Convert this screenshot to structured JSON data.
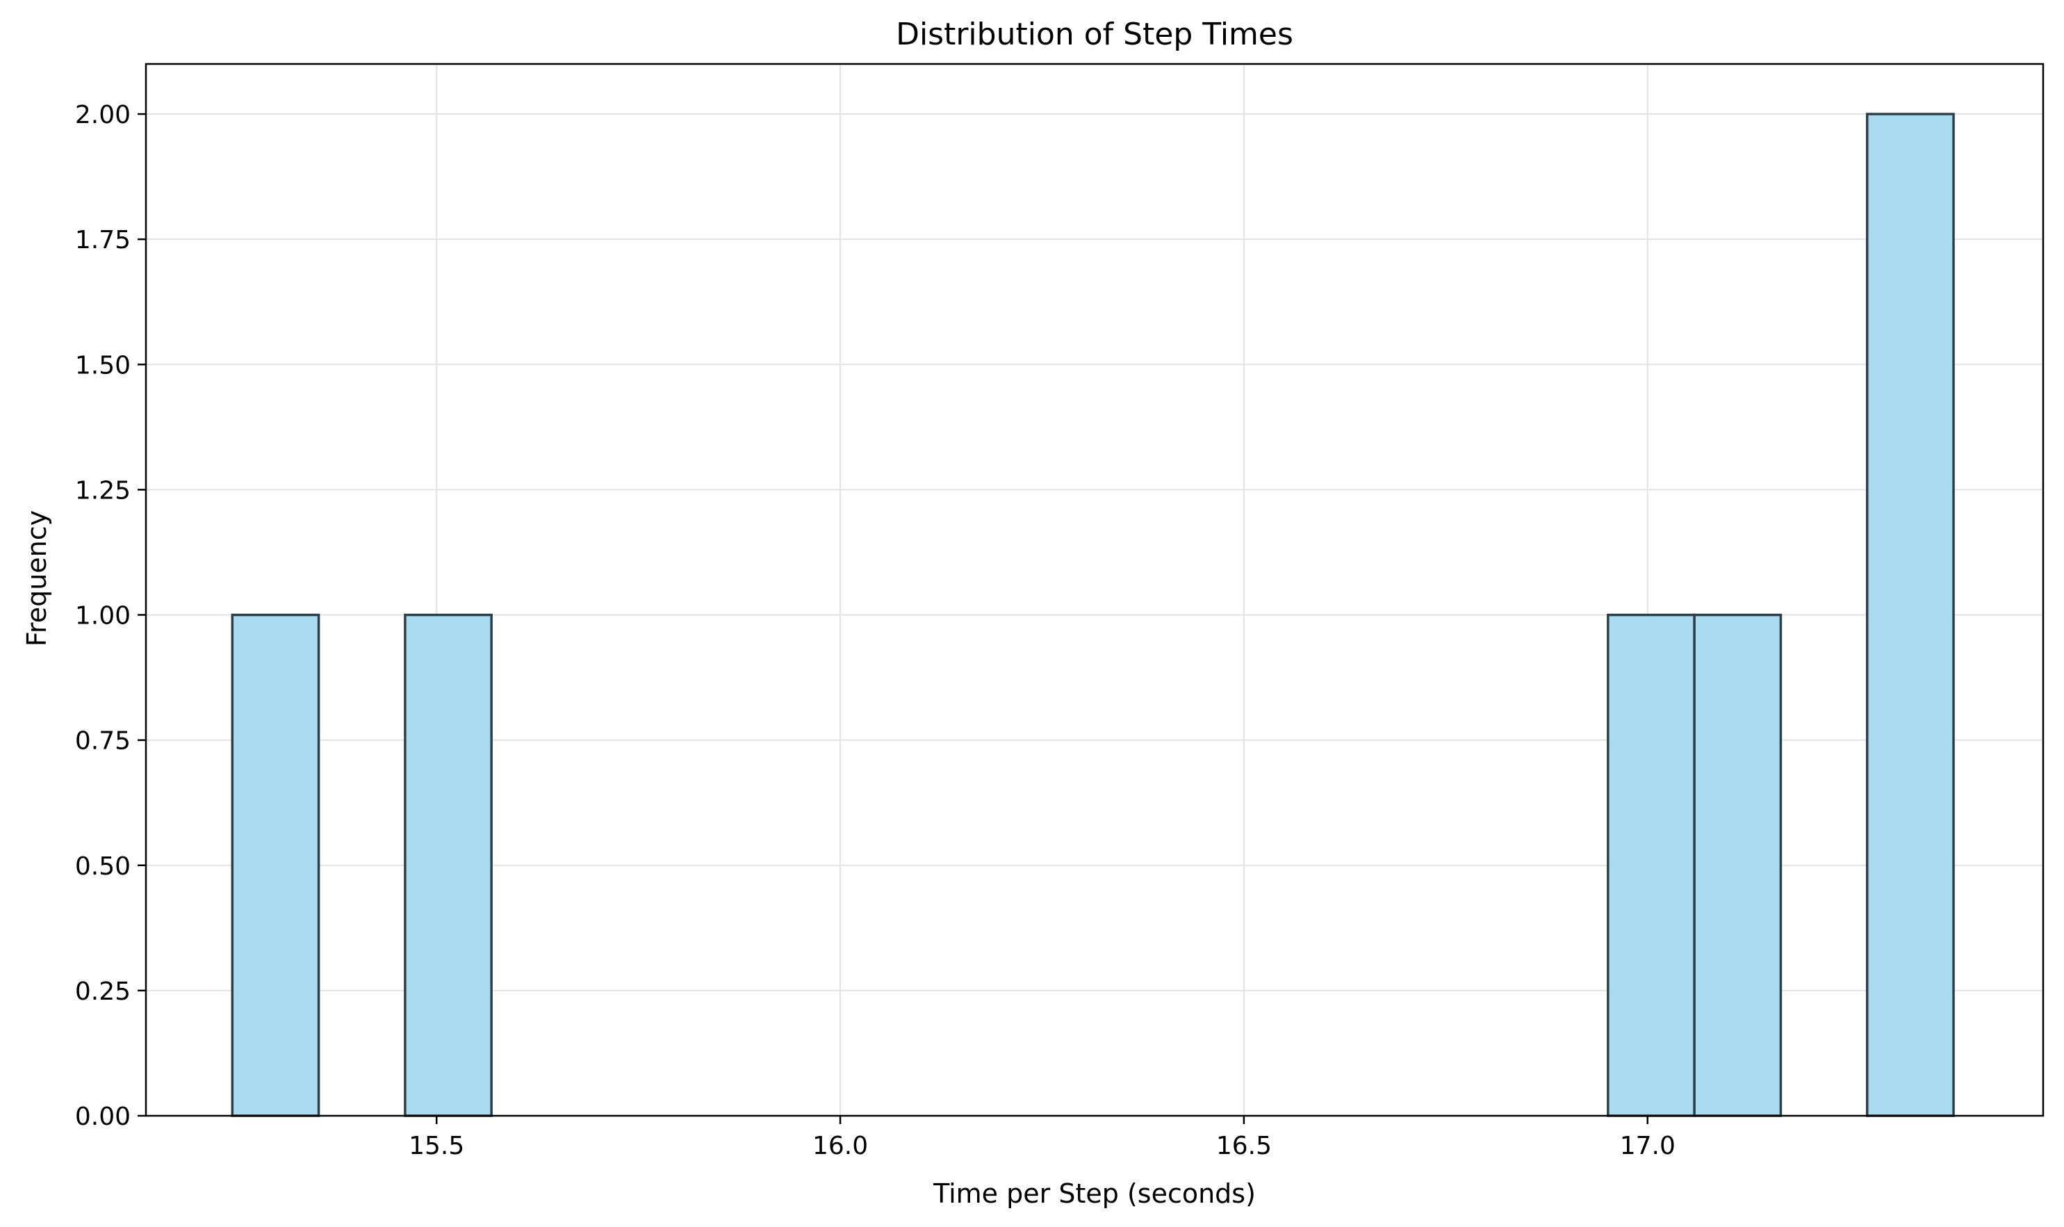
{
  "chart_data": {
    "type": "bar",
    "title": "Distribution of Step Times",
    "xlabel": "Time per Step (seconds)",
    "ylabel": "Frequency",
    "xlim": [
      15.14,
      17.49
    ],
    "ylim": [
      0,
      2.1
    ],
    "xticks": [
      15.5,
      16.0,
      16.5,
      17.0
    ],
    "xtick_labels": [
      "15.5",
      "16.0",
      "16.5",
      "17.0"
    ],
    "yticks": [
      0,
      0.25,
      0.5,
      0.75,
      1.0,
      1.25,
      1.5,
      1.75,
      2.0
    ],
    "ytick_labels": [
      "0.00",
      "0.25",
      "0.50",
      "0.75",
      "1.00",
      "1.25",
      "1.50",
      "1.75",
      "2.00"
    ],
    "bins": [
      {
        "x0": 15.247,
        "x1": 15.354,
        "count": 1
      },
      {
        "x0": 15.461,
        "x1": 15.568,
        "count": 1
      },
      {
        "x0": 16.951,
        "x1": 17.058,
        "count": 1
      },
      {
        "x0": 17.058,
        "x1": 17.165,
        "count": 1
      },
      {
        "x0": 17.272,
        "x1": 17.379,
        "count": 2
      }
    ],
    "grid": true,
    "legend": "none",
    "colors": {
      "bar_fill": "#aadaef",
      "bar_edge": "#2f3f48",
      "grid": "#e3e3e3",
      "axis": "#000000"
    }
  }
}
